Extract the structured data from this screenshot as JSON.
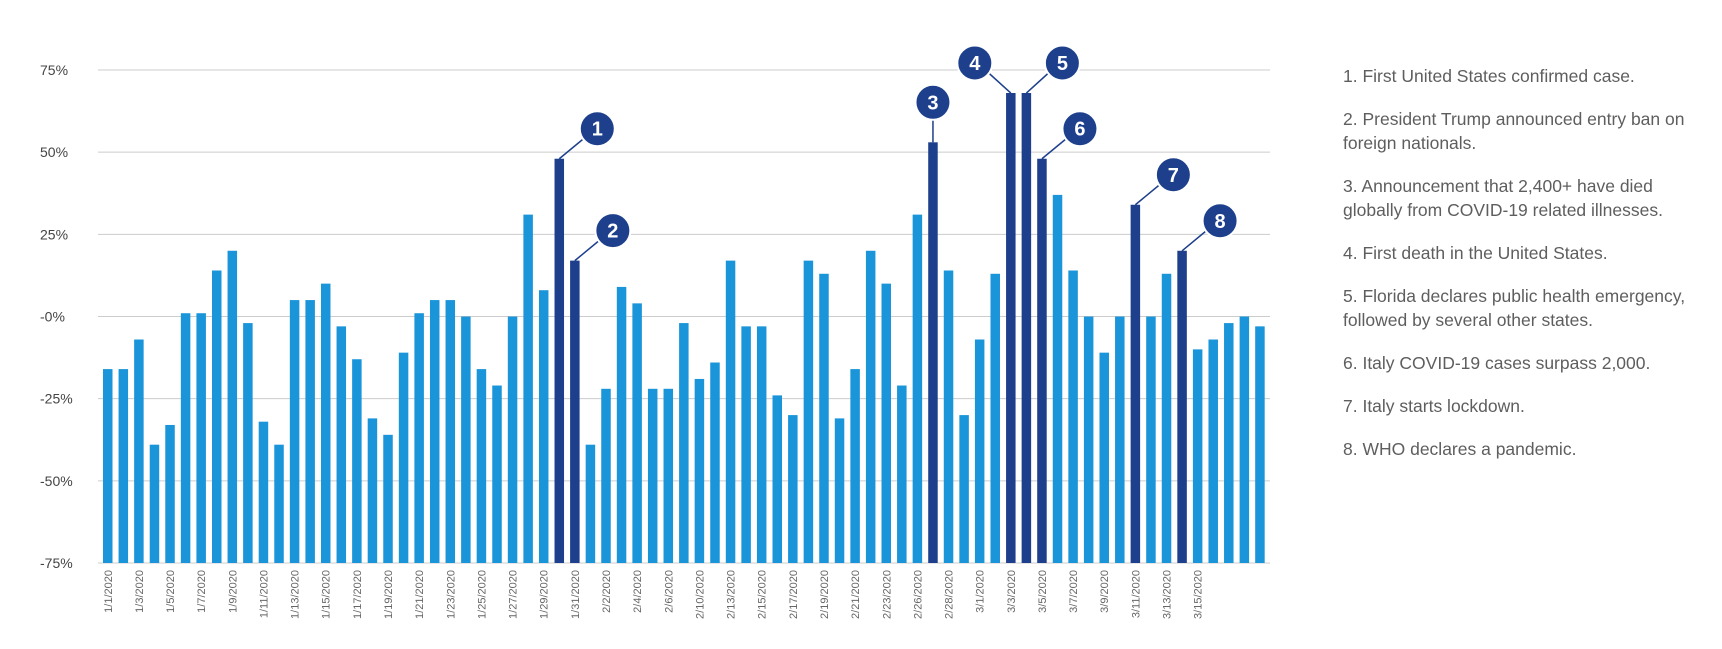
{
  "colors": {
    "bar": "#1b95d9",
    "highlight": "#1d3f8c",
    "grid": "#cccccc",
    "badge": "#1d3f8c"
  },
  "chart_data": {
    "type": "bar",
    "ylim": [
      -75,
      75
    ],
    "yticks": [
      {
        "value": 75,
        "label": "75%"
      },
      {
        "value": 50,
        "label": "50%"
      },
      {
        "value": 25,
        "label": "25%"
      },
      {
        "value": 0,
        "label": "-0%"
      },
      {
        "value": -25,
        "label": "-25%"
      },
      {
        "value": -50,
        "label": "-50%"
      },
      {
        "value": -75,
        "label": "-75%"
      }
    ],
    "tick_labels": [
      "1/1/2020",
      "1/3/2020",
      "1/5/2020",
      "1/7/2020",
      "1/9/2020",
      "1/11/2020",
      "1/13/2020",
      "1/15/2020",
      "1/17/2020",
      "1/19/2020",
      "1/21/2020",
      "1/23/2020",
      "1/25/2020",
      "1/27/2020",
      "1/29/2020",
      "1/31/2020",
      "2/2/2020",
      "2/4/2020",
      "2/6/2020",
      "2/10/2020",
      "2/13/2020",
      "2/15/2020",
      "2/17/2020",
      "2/19/2020",
      "2/21/2020",
      "2/23/2020",
      "2/26/2020",
      "2/28/2020",
      "3/1/2020",
      "3/3/2020",
      "3/5/2020",
      "3/7/2020",
      "3/9/2020",
      "3/11/2020",
      "3/13/2020",
      "3/15/2020"
    ],
    "values": [
      -16,
      -16,
      -7,
      -39,
      -33,
      1,
      1,
      14,
      20,
      -2,
      -32,
      -39,
      5,
      5,
      10,
      -3,
      -13,
      -31,
      -36,
      -11,
      1,
      5,
      5,
      0,
      -16,
      -21,
      0,
      31,
      8,
      48,
      17,
      -39,
      -22,
      9,
      4,
      -22,
      -22,
      -2,
      -19,
      -14,
      17,
      -3,
      -3,
      -24,
      -30,
      17,
      13,
      -31,
      -16,
      20,
      10,
      -21,
      31,
      53,
      14,
      -30,
      -7,
      13,
      68,
      68,
      48,
      37,
      14,
      0,
      -11,
      0,
      34,
      0,
      13,
      20,
      -10,
      -7,
      -2,
      0,
      -3
    ],
    "highlights": [
      {
        "bar": 29,
        "label": "1"
      },
      {
        "bar": 30,
        "label": "2"
      },
      {
        "bar": 53,
        "label": "3"
      },
      {
        "bar": 58,
        "label": "4"
      },
      {
        "bar": 59,
        "label": "5"
      },
      {
        "bar": 60,
        "label": "6"
      },
      {
        "bar": 66,
        "label": "7"
      },
      {
        "bar": 69,
        "label": "8"
      }
    ],
    "annotations": [
      "1. First United States confirmed case.",
      "2. President Trump announced entry ban on foreign nationals.",
      "3. Announcement that 2,400+ have died globally from COVID-19 related illnesses.",
      "4. First death in the United States.",
      "5. Florida declares public health emergency, followed by several other states.",
      "6. Italy COVID-19 cases surpass 2,000.",
      "7. Italy starts lockdown.",
      "8. WHO declares a pandemic."
    ]
  }
}
